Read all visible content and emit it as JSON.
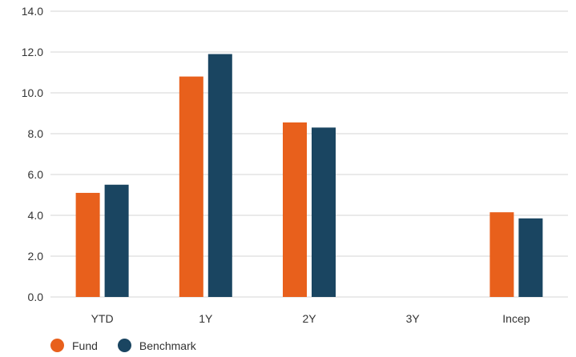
{
  "chart_data": {
    "type": "bar",
    "categories": [
      "YTD",
      "1Y",
      "2Y",
      "3Y",
      "Incep"
    ],
    "series": [
      {
        "name": "Fund",
        "color": "#e8601c",
        "values": [
          5.1,
          10.8,
          8.55,
          null,
          4.15
        ]
      },
      {
        "name": "Benchmark",
        "color": "#1a4561",
        "values": [
          5.5,
          11.9,
          8.3,
          null,
          3.85
        ]
      }
    ],
    "ylim": [
      0,
      14
    ],
    "yticks": [
      "0.0",
      "2.0",
      "4.0",
      "6.0",
      "8.0",
      "10.0",
      "12.0",
      "14.0"
    ],
    "title": "",
    "xlabel": "",
    "ylabel": "",
    "grid": true,
    "legend_position": "bottom-left"
  }
}
